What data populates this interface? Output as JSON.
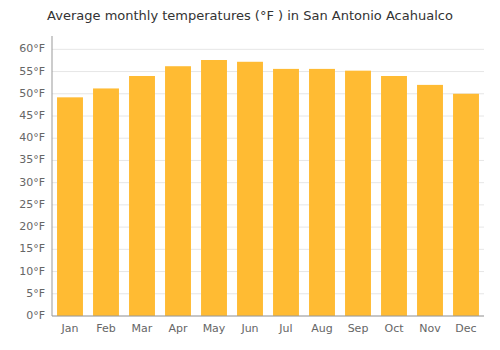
{
  "chart_data": {
    "type": "bar",
    "title": "Average monthly temperatures (°F ) in San Antonio Acahualco",
    "categories": [
      "Jan",
      "Feb",
      "Mar",
      "Apr",
      "May",
      "Jun",
      "Jul",
      "Aug",
      "Sep",
      "Oct",
      "Nov",
      "Dec"
    ],
    "values": [
      49.2,
      51.2,
      54.0,
      56.2,
      57.6,
      57.2,
      55.6,
      55.6,
      55.2,
      54.0,
      52.0,
      50.0
    ],
    "color": "#FFBB33",
    "ylim": [
      0,
      63
    ],
    "yticks": [
      {
        "value": 0,
        "label": "0°F"
      },
      {
        "value": 5,
        "label": "5°F"
      },
      {
        "value": 10,
        "label": "10°F"
      },
      {
        "value": 15,
        "label": "15°F"
      },
      {
        "value": 20,
        "label": "20°F"
      },
      {
        "value": 25,
        "label": "25°F"
      },
      {
        "value": 30,
        "label": "30°F"
      },
      {
        "value": 35,
        "label": "35°F"
      },
      {
        "value": 40,
        "label": "40°F"
      },
      {
        "value": 45,
        "label": "45°F"
      },
      {
        "value": 50,
        "label": "50°F"
      },
      {
        "value": 55,
        "label": "55°F"
      },
      {
        "value": 60,
        "label": "60°F"
      }
    ],
    "grid": true
  }
}
